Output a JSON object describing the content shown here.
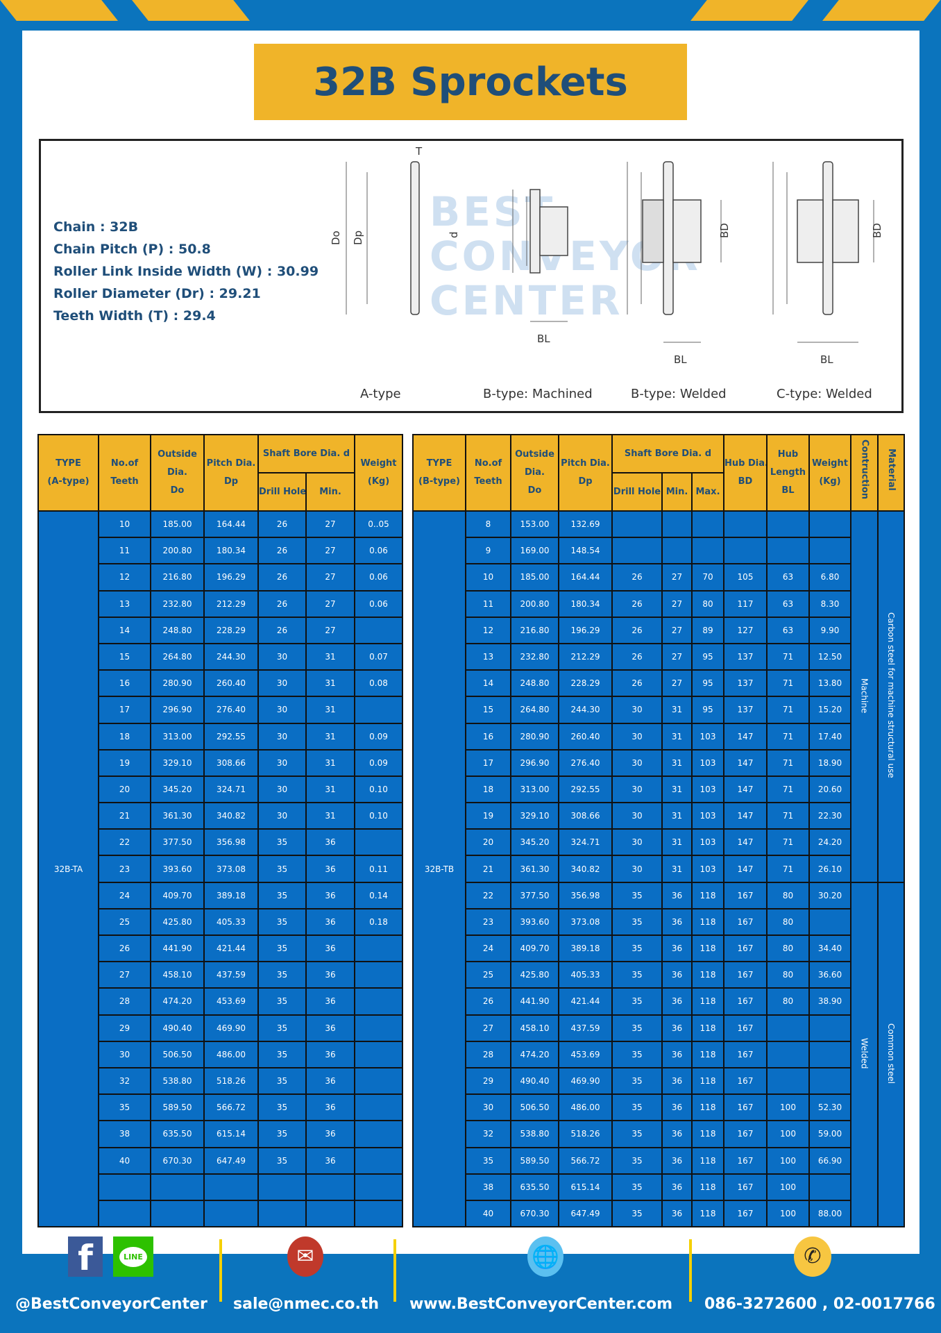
{
  "title": "32B Sprockets",
  "colors": {
    "background": "#0b74bd",
    "accent": "#f0b429",
    "title_text": "#1f4e79",
    "table_cell": "#0a6ec4"
  },
  "specs": [
    "Chain  : 32B",
    "Chain Pitch (P)  :  50.8",
    "Roller Link Inside Width (W)  :  30.99",
    "Roller Diameter (Dr)  :  29.21",
    "Teeth Width (T)  :  29.4"
  ],
  "diagram": {
    "types": [
      "A-type",
      "B-type: Machined",
      "B-type: Welded",
      "C-type: Welded"
    ],
    "labels": {
      "T": "T",
      "Do": "Do",
      "Dp": "Dp",
      "d": "d",
      "BD": "BD",
      "BL": "BL"
    },
    "watermark": "BEST CONVEYOR CENTER"
  },
  "table_a": {
    "headers": {
      "type": "TYPE",
      "type_sub": "(A-type)",
      "teeth": "No.of",
      "teeth_sub": "Teeth",
      "do": "Outside",
      "do_mid": "Dia.",
      "do_sub": "Do",
      "dp": "Pitch Dia.",
      "dp_sub": "Dp",
      "bore": "Shaft Bore Dia. d",
      "drill": "Drill Hole",
      "min": "Min.",
      "weight": "Weight",
      "weight_sub": "(Kg)"
    },
    "type_value": "32B-TA",
    "rows": [
      [
        "10",
        "185.00",
        "164.44",
        "26",
        "27",
        "0..05"
      ],
      [
        "11",
        "200.80",
        "180.34",
        "26",
        "27",
        "0.06"
      ],
      [
        "12",
        "216.80",
        "196.29",
        "26",
        "27",
        "0.06"
      ],
      [
        "13",
        "232.80",
        "212.29",
        "26",
        "27",
        "0.06"
      ],
      [
        "14",
        "248.80",
        "228.29",
        "26",
        "27",
        ""
      ],
      [
        "15",
        "264.80",
        "244.30",
        "30",
        "31",
        "0.07"
      ],
      [
        "16",
        "280.90",
        "260.40",
        "30",
        "31",
        "0.08"
      ],
      [
        "17",
        "296.90",
        "276.40",
        "30",
        "31",
        ""
      ],
      [
        "18",
        "313.00",
        "292.55",
        "30",
        "31",
        "0.09"
      ],
      [
        "19",
        "329.10",
        "308.66",
        "30",
        "31",
        "0.09"
      ],
      [
        "20",
        "345.20",
        "324.71",
        "30",
        "31",
        "0.10"
      ],
      [
        "21",
        "361.30",
        "340.82",
        "30",
        "31",
        "0.10"
      ],
      [
        "22",
        "377.50",
        "356.98",
        "35",
        "36",
        ""
      ],
      [
        "23",
        "393.60",
        "373.08",
        "35",
        "36",
        "0.11"
      ],
      [
        "24",
        "409.70",
        "389.18",
        "35",
        "36",
        "0.14"
      ],
      [
        "25",
        "425.80",
        "405.33",
        "35",
        "36",
        "0.18"
      ],
      [
        "26",
        "441.90",
        "421.44",
        "35",
        "36",
        ""
      ],
      [
        "27",
        "458.10",
        "437.59",
        "35",
        "36",
        ""
      ],
      [
        "28",
        "474.20",
        "453.69",
        "35",
        "36",
        ""
      ],
      [
        "29",
        "490.40",
        "469.90",
        "35",
        "36",
        ""
      ],
      [
        "30",
        "506.50",
        "486.00",
        "35",
        "36",
        ""
      ],
      [
        "32",
        "538.80",
        "518.26",
        "35",
        "36",
        ""
      ],
      [
        "35",
        "589.50",
        "566.72",
        "35",
        "36",
        ""
      ],
      [
        "38",
        "635.50",
        "615.14",
        "35",
        "36",
        ""
      ],
      [
        "40",
        "670.30",
        "647.49",
        "35",
        "36",
        ""
      ],
      [
        "",
        "",
        "",
        "",
        "",
        ""
      ],
      [
        "",
        "",
        "",
        "",
        "",
        ""
      ]
    ]
  },
  "table_b": {
    "headers": {
      "type": "TYPE",
      "type_sub": "(B-type)",
      "teeth": "No.of",
      "teeth_sub": "Teeth",
      "do": "Outside",
      "do_mid": "Dia.",
      "do_sub": "Do",
      "dp": "Pitch Dia.",
      "dp_sub": "Dp",
      "bore": "Shaft Bore Dia. d",
      "drill": "Drill Hole",
      "min": "Min.",
      "max": "Max.",
      "bd": "Hub Dia.",
      "bd_sub": "BD",
      "bl": "Hub",
      "bl_mid": "Length",
      "bl_sub": "BL",
      "weight": "Weight",
      "weight_sub": "(Kg)",
      "construction": "Contruction",
      "material": "Material"
    },
    "type_value": "32B-TB",
    "construction": [
      {
        "label": "Machine",
        "rows": 14
      },
      {
        "label": "Welded",
        "rows": 13
      }
    ],
    "material": [
      {
        "label": "Carbon steel for machine structural use",
        "rows": 14
      },
      {
        "label": "Common steel",
        "rows": 13
      }
    ],
    "rows": [
      [
        "8",
        "153.00",
        "132.69",
        "",
        "",
        "",
        "",
        "",
        ""
      ],
      [
        "9",
        "169.00",
        "148.54",
        "",
        "",
        "",
        "",
        "",
        ""
      ],
      [
        "10",
        "185.00",
        "164.44",
        "26",
        "27",
        "70",
        "105",
        "63",
        "6.80"
      ],
      [
        "11",
        "200.80",
        "180.34",
        "26",
        "27",
        "80",
        "117",
        "63",
        "8.30"
      ],
      [
        "12",
        "216.80",
        "196.29",
        "26",
        "27",
        "89",
        "127",
        "63",
        "9.90"
      ],
      [
        "13",
        "232.80",
        "212.29",
        "26",
        "27",
        "95",
        "137",
        "71",
        "12.50"
      ],
      [
        "14",
        "248.80",
        "228.29",
        "26",
        "27",
        "95",
        "137",
        "71",
        "13.80"
      ],
      [
        "15",
        "264.80",
        "244.30",
        "30",
        "31",
        "95",
        "137",
        "71",
        "15.20"
      ],
      [
        "16",
        "280.90",
        "260.40",
        "30",
        "31",
        "103",
        "147",
        "71",
        "17.40"
      ],
      [
        "17",
        "296.90",
        "276.40",
        "30",
        "31",
        "103",
        "147",
        "71",
        "18.90"
      ],
      [
        "18",
        "313.00",
        "292.55",
        "30",
        "31",
        "103",
        "147",
        "71",
        "20.60"
      ],
      [
        "19",
        "329.10",
        "308.66",
        "30",
        "31",
        "103",
        "147",
        "71",
        "22.30"
      ],
      [
        "20",
        "345.20",
        "324.71",
        "30",
        "31",
        "103",
        "147",
        "71",
        "24.20"
      ],
      [
        "21",
        "361.30",
        "340.82",
        "30",
        "31",
        "103",
        "147",
        "71",
        "26.10"
      ],
      [
        "22",
        "377.50",
        "356.98",
        "35",
        "36",
        "118",
        "167",
        "80",
        "30.20"
      ],
      [
        "23",
        "393.60",
        "373.08",
        "35",
        "36",
        "118",
        "167",
        "80",
        ""
      ],
      [
        "24",
        "409.70",
        "389.18",
        "35",
        "36",
        "118",
        "167",
        "80",
        "34.40"
      ],
      [
        "25",
        "425.80",
        "405.33",
        "35",
        "36",
        "118",
        "167",
        "80",
        "36.60"
      ],
      [
        "26",
        "441.90",
        "421.44",
        "35",
        "36",
        "118",
        "167",
        "80",
        "38.90"
      ],
      [
        "27",
        "458.10",
        "437.59",
        "35",
        "36",
        "118",
        "167",
        "",
        ""
      ],
      [
        "28",
        "474.20",
        "453.69",
        "35",
        "36",
        "118",
        "167",
        "",
        ""
      ],
      [
        "29",
        "490.40",
        "469.90",
        "35",
        "36",
        "118",
        "167",
        "",
        ""
      ],
      [
        "30",
        "506.50",
        "486.00",
        "35",
        "36",
        "118",
        "167",
        "100",
        "52.30"
      ],
      [
        "32",
        "538.80",
        "518.26",
        "35",
        "36",
        "118",
        "167",
        "100",
        "59.00"
      ],
      [
        "35",
        "589.50",
        "566.72",
        "35",
        "36",
        "118",
        "167",
        "100",
        "66.90"
      ],
      [
        "38",
        "635.50",
        "615.14",
        "35",
        "36",
        "118",
        "167",
        "100",
        ""
      ],
      [
        "40",
        "670.30",
        "647.49",
        "35",
        "36",
        "118",
        "167",
        "100",
        "88.00"
      ]
    ]
  },
  "footer": {
    "social": "@BestConveyorCenter",
    "line_label": "LINE",
    "email": "sale@nmec.co.th",
    "website": "www.BestConveyorCenter.com",
    "phone": "086-3272600 , 02-0017766"
  }
}
